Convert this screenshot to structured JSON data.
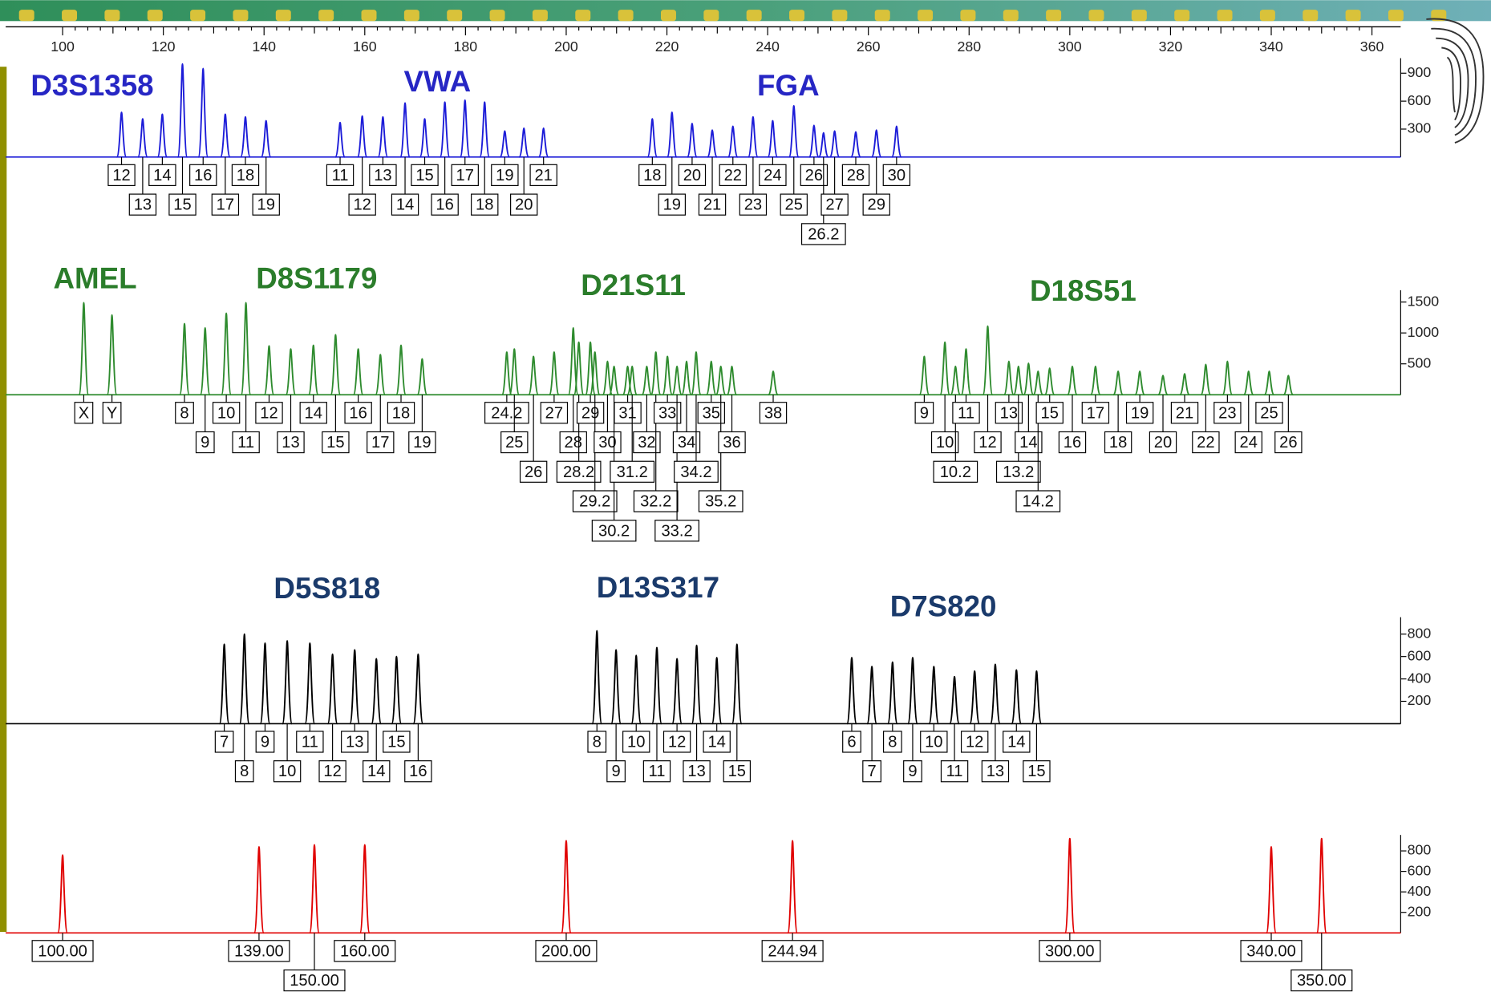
{
  "chart_data": [
    {
      "type": "peaks",
      "color": "#1c1cd8",
      "name_color": "#2626c4",
      "xlim": [
        88.7,
        365.7
      ],
      "xticks": [
        100,
        120,
        140,
        160,
        180,
        200,
        220,
        240,
        260,
        280,
        300,
        320,
        340,
        360
      ],
      "ylim": [
        0,
        1000
      ],
      "yticks": [
        300,
        600,
        900
      ],
      "loci": [
        {
          "name": "D3S1358",
          "alleles": [
            {
              "label": "12",
              "x": 111.7,
              "height": 480
            },
            {
              "label": "13",
              "x": 115.9,
              "height": 410
            },
            {
              "label": "14",
              "x": 119.8,
              "height": 460
            },
            {
              "label": "15",
              "x": 123.8,
              "height": 1000
            },
            {
              "label": "16",
              "x": 127.9,
              "height": 950
            },
            {
              "label": "17",
              "x": 132.3,
              "height": 460
            },
            {
              "label": "18",
              "x": 136.3,
              "height": 430
            },
            {
              "label": "19",
              "x": 140.4,
              "height": 390
            }
          ]
        },
        {
          "name": "VWA",
          "alleles": [
            {
              "label": "11",
              "x": 155.1,
              "height": 370
            },
            {
              "label": "12",
              "x": 159.5,
              "height": 440
            },
            {
              "label": "13",
              "x": 163.6,
              "height": 430
            },
            {
              "label": "14",
              "x": 168.0,
              "height": 580
            },
            {
              "label": "15",
              "x": 171.9,
              "height": 410
            },
            {
              "label": "16",
              "x": 175.9,
              "height": 590
            },
            {
              "label": "17",
              "x": 179.9,
              "height": 610
            },
            {
              "label": "18",
              "x": 183.8,
              "height": 590
            },
            {
              "label": "19",
              "x": 187.8,
              "height": 280
            },
            {
              "label": "20",
              "x": 191.6,
              "height": 310
            },
            {
              "label": "21",
              "x": 195.5,
              "height": 310
            }
          ]
        },
        {
          "name": "FGA",
          "alleles": [
            {
              "label": "18",
              "x": 217.1,
              "height": 410
            },
            {
              "label": "19",
              "x": 221.0,
              "height": 480
            },
            {
              "label": "20",
              "x": 225.0,
              "height": 360
            },
            {
              "label": "21",
              "x": 229.0,
              "height": 290
            },
            {
              "label": "22",
              "x": 233.1,
              "height": 330
            },
            {
              "label": "23",
              "x": 237.1,
              "height": 430
            },
            {
              "label": "24",
              "x": 241.0,
              "height": 390
            },
            {
              "label": "25",
              "x": 245.2,
              "height": 550
            },
            {
              "label": "26",
              "x": 249.2,
              "height": 340
            },
            {
              "label": "26.2",
              "x": 251.1,
              "height": 260
            },
            {
              "label": "27",
              "x": 253.3,
              "height": 280
            },
            {
              "label": "28",
              "x": 257.5,
              "height": 270
            },
            {
              "label": "29",
              "x": 261.6,
              "height": 290
            },
            {
              "label": "30",
              "x": 265.6,
              "height": 330
            }
          ]
        }
      ]
    },
    {
      "type": "peaks",
      "color": "#2e8b2e",
      "name_color": "#2b7d2b",
      "xlim": [
        88.7,
        365.7
      ],
      "ylim": [
        0,
        1600
      ],
      "yticks": [
        500,
        1000,
        1500
      ],
      "loci": [
        {
          "name": "AMEL",
          "alleles": [
            {
              "label": "X",
              "x": 104.2,
              "height": 1490
            },
            {
              "label": "Y",
              "x": 109.8,
              "height": 1290
            }
          ]
        },
        {
          "name": "D8S1179",
          "alleles": [
            {
              "label": "8",
              "x": 124.2,
              "height": 1150
            },
            {
              "label": "9",
              "x": 128.3,
              "height": 1080
            },
            {
              "label": "10",
              "x": 132.5,
              "height": 1320
            },
            {
              "label": "11",
              "x": 136.4,
              "height": 1490
            },
            {
              "label": "12",
              "x": 141.0,
              "height": 790
            },
            {
              "label": "13",
              "x": 145.3,
              "height": 740
            },
            {
              "label": "14",
              "x": 149.8,
              "height": 800
            },
            {
              "label": "15",
              "x": 154.2,
              "height": 970
            },
            {
              "label": "16",
              "x": 158.7,
              "height": 740
            },
            {
              "label": "17",
              "x": 163.1,
              "height": 650
            },
            {
              "label": "18",
              "x": 167.2,
              "height": 800
            },
            {
              "label": "19",
              "x": 171.4,
              "height": 580
            }
          ]
        },
        {
          "name": "D21S11",
          "alleles": [
            {
              "label": "24.2",
              "x": 188.2,
              "height": 690
            },
            {
              "label": "25",
              "x": 189.7,
              "height": 740
            },
            {
              "label": "26",
              "x": 193.5,
              "height": 620
            },
            {
              "label": "27",
              "x": 197.6,
              "height": 690
            },
            {
              "label": "28",
              "x": 201.4,
              "height": 1080
            },
            {
              "label": "28.2",
              "x": 202.5,
              "height": 850
            },
            {
              "label": "29",
              "x": 204.8,
              "height": 850
            },
            {
              "label": "29.2",
              "x": 205.7,
              "height": 690
            },
            {
              "label": "30",
              "x": 208.2,
              "height": 540
            },
            {
              "label": "30.2",
              "x": 209.5,
              "height": 460
            },
            {
              "label": "31",
              "x": 212.2,
              "height": 460
            },
            {
              "label": "31.2",
              "x": 213.1,
              "height": 460
            },
            {
              "label": "32",
              "x": 216.0,
              "height": 460
            },
            {
              "label": "32.2",
              "x": 217.8,
              "height": 690
            },
            {
              "label": "33",
              "x": 220.1,
              "height": 620
            },
            {
              "label": "33.2",
              "x": 222.0,
              "height": 460
            },
            {
              "label": "34",
              "x": 223.9,
              "height": 540
            },
            {
              "label": "34.2",
              "x": 225.8,
              "height": 690
            },
            {
              "label": "35",
              "x": 228.8,
              "height": 540
            },
            {
              "label": "35.2",
              "x": 230.7,
              "height": 460
            },
            {
              "label": "36",
              "x": 232.9,
              "height": 460
            },
            {
              "label": "38",
              "x": 241.1,
              "height": 380
            }
          ]
        },
        {
          "name": "D18S51",
          "alleles": [
            {
              "label": "9",
              "x": 271.1,
              "height": 620
            },
            {
              "label": "10",
              "x": 275.2,
              "height": 850
            },
            {
              "label": "10.2",
              "x": 277.3,
              "height": 460
            },
            {
              "label": "11",
              "x": 279.4,
              "height": 740
            },
            {
              "label": "12",
              "x": 283.7,
              "height": 1110
            },
            {
              "label": "13",
              "x": 287.9,
              "height": 540
            },
            {
              "label": "13.2",
              "x": 289.8,
              "height": 460
            },
            {
              "label": "14",
              "x": 291.8,
              "height": 510
            },
            {
              "label": "14.2",
              "x": 293.7,
              "height": 380
            },
            {
              "label": "15",
              "x": 296.0,
              "height": 430
            },
            {
              "label": "16",
              "x": 300.5,
              "height": 460
            },
            {
              "label": "17",
              "x": 305.1,
              "height": 460
            },
            {
              "label": "18",
              "x": 309.6,
              "height": 380
            },
            {
              "label": "19",
              "x": 313.9,
              "height": 380
            },
            {
              "label": "20",
              "x": 318.5,
              "height": 310
            },
            {
              "label": "21",
              "x": 322.8,
              "height": 340
            },
            {
              "label": "22",
              "x": 327.0,
              "height": 490
            },
            {
              "label": "23",
              "x": 331.3,
              "height": 540
            },
            {
              "label": "24",
              "x": 335.5,
              "height": 380
            },
            {
              "label": "25",
              "x": 339.6,
              "height": 380
            },
            {
              "label": "26",
              "x": 343.4,
              "height": 310
            }
          ]
        }
      ]
    },
    {
      "type": "peaks",
      "color": "#000000",
      "name_color": "#1a3a6b",
      "xlim": [
        88.7,
        365.7
      ],
      "ylim": [
        0,
        900
      ],
      "yticks": [
        200,
        400,
        600,
        800
      ],
      "loci": [
        {
          "name": "D5S818",
          "alleles": [
            {
              "label": "7",
              "x": 132.1,
              "height": 710
            },
            {
              "label": "8",
              "x": 136.1,
              "height": 800
            },
            {
              "label": "9",
              "x": 140.2,
              "height": 720
            },
            {
              "label": "10",
              "x": 144.6,
              "height": 740
            },
            {
              "label": "11",
              "x": 149.1,
              "height": 720
            },
            {
              "label": "12",
              "x": 153.6,
              "height": 620
            },
            {
              "label": "13",
              "x": 158.0,
              "height": 660
            },
            {
              "label": "14",
              "x": 162.3,
              "height": 580
            },
            {
              "label": "15",
              "x": 166.3,
              "height": 600
            },
            {
              "label": "16",
              "x": 170.6,
              "height": 620
            }
          ]
        },
        {
          "name": "D13S317",
          "alleles": [
            {
              "label": "8",
              "x": 206.1,
              "height": 830
            },
            {
              "label": "9",
              "x": 209.9,
              "height": 660
            },
            {
              "label": "10",
              "x": 213.9,
              "height": 610
            },
            {
              "label": "11",
              "x": 218.0,
              "height": 680
            },
            {
              "label": "12",
              "x": 222.0,
              "height": 580
            },
            {
              "label": "13",
              "x": 225.9,
              "height": 700
            },
            {
              "label": "14",
              "x": 229.9,
              "height": 590
            },
            {
              "label": "15",
              "x": 233.9,
              "height": 710
            }
          ]
        },
        {
          "name": "D7S820",
          "alleles": [
            {
              "label": "6",
              "x": 256.7,
              "height": 590
            },
            {
              "label": "7",
              "x": 260.7,
              "height": 510
            },
            {
              "label": "8",
              "x": 264.8,
              "height": 550
            },
            {
              "label": "9",
              "x": 268.8,
              "height": 590
            },
            {
              "label": "10",
              "x": 273.0,
              "height": 510
            },
            {
              "label": "11",
              "x": 277.1,
              "height": 420
            },
            {
              "label": "12",
              "x": 281.1,
              "height": 470
            },
            {
              "label": "13",
              "x": 285.2,
              "height": 530
            },
            {
              "label": "14",
              "x": 289.4,
              "height": 480
            },
            {
              "label": "15",
              "x": 293.4,
              "height": 470
            }
          ]
        }
      ]
    },
    {
      "type": "peaks",
      "color": "#e00000",
      "xlim": [
        88.7,
        365.7
      ],
      "ylim": [
        0,
        900
      ],
      "yticks": [
        200,
        400,
        600,
        800
      ],
      "loci": [
        {
          "alleles": [
            {
              "label": "100.00",
              "x": 100,
              "height": 760
            },
            {
              "label": "139.00",
              "x": 139,
              "height": 840
            },
            {
              "label": "150.00",
              "x": 150,
              "height": 860
            },
            {
              "label": "160.00",
              "x": 160,
              "height": 860
            },
            {
              "label": "200.00",
              "x": 200,
              "height": 900
            },
            {
              "label": "244.94",
              "x": 244.94,
              "height": 900
            },
            {
              "label": "300.00",
              "x": 300,
              "height": 920
            },
            {
              "label": "340.00",
              "x": 340,
              "height": 840
            },
            {
              "label": "350.00",
              "x": 350,
              "height": 920
            }
          ]
        }
      ]
    }
  ]
}
